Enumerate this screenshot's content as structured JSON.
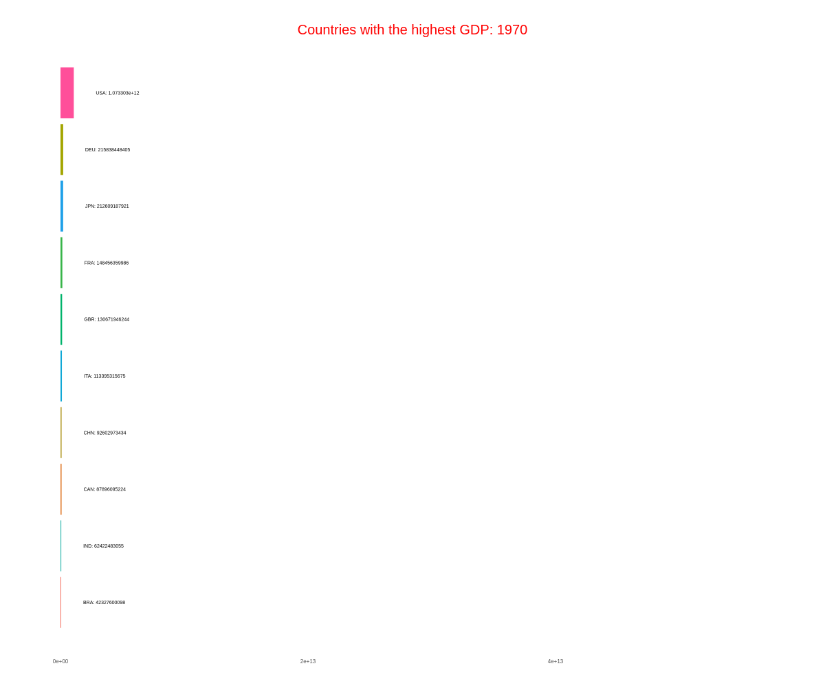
{
  "chart_data": {
    "type": "bar",
    "orientation": "horizontal",
    "title": "Countries with the highest GDP: 1970",
    "title_color": "#ff0000",
    "xlabel": "",
    "ylabel": "",
    "xlim": [
      0,
      45000000000000
    ],
    "grid": false,
    "legend": "none",
    "x_ticks": [
      {
        "value": 0,
        "label": "0e+00"
      },
      {
        "value": 20000000000000,
        "label": "2e+13"
      },
      {
        "value": 40000000000000,
        "label": "4e+13"
      }
    ],
    "bars": [
      {
        "category": "USA",
        "value": 1073303000000,
        "label": "USA: 1.073303e+12",
        "color": "#ff4f9a"
      },
      {
        "category": "DEU",
        "value": 215838448405,
        "label": "DEU: 215838448405",
        "color": "#a3a500"
      },
      {
        "category": "JPN",
        "value": 212609187921,
        "label": "JPN: 212609187921",
        "color": "#1fa0e8"
      },
      {
        "category": "FRA",
        "value": 148456359986,
        "label": "FRA: 148456359986",
        "color": "#39b54a"
      },
      {
        "category": "GBR",
        "value": 130671946244,
        "label": "GBR: 130671946244",
        "color": "#00b36b"
      },
      {
        "category": "ITA",
        "value": 113395315675,
        "label": "ITA: 113395315675",
        "color": "#10a8d6"
      },
      {
        "category": "CHN",
        "value": 92602973434,
        "label": "CHN: 92602973434",
        "color": "#b9a23a"
      },
      {
        "category": "CAN",
        "value": 87896095224,
        "label": "CAN: 87896095224",
        "color": "#e07b2e"
      },
      {
        "category": "IND",
        "value": 62422483055,
        "label": "IND: 62422483055",
        "color": "#22b3a8"
      },
      {
        "category": "BRA",
        "value": 42327600098,
        "label": "BRA: 42327600098",
        "color": "#f26b5b"
      }
    ]
  }
}
